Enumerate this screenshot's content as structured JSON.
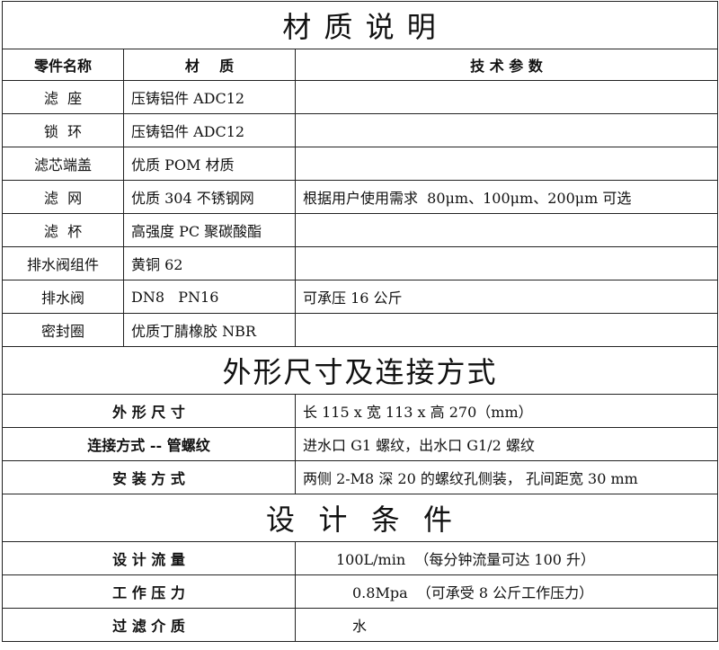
{
  "title": "材 质 说 明",
  "headers": [
    "零件名称",
    "材    质",
    "技 术 参 数"
  ],
  "parts": [
    {
      "name": "滤  座",
      "material": "压铸铝件 ADC12",
      "spec": ""
    },
    {
      "name": "锁  环",
      "material": "压铸铝件 ADC12",
      "spec": ""
    },
    {
      "name": "滤芯端盖",
      "material": "优质 POM 材质",
      "spec": ""
    },
    {
      "name": "滤  网",
      "material": "优质 304 不锈钢网",
      "spec": "根据用户使用需求  80μm、100μm、200μm 可选"
    },
    {
      "name": "滤  杯",
      "material": "高强度 PC 聚碳酸酯",
      "spec": ""
    },
    {
      "name": "排水阀组件",
      "material": "黄铜 62",
      "spec": ""
    },
    {
      "name": "排水阀",
      "material": "DN8   PN16",
      "spec": "可承压 16 公斤"
    },
    {
      "name": "密封圈",
      "material": "优质丁腈橡胶 NBR",
      "spec": ""
    }
  ],
  "section2": {
    "title": "外形尺寸及连接方式",
    "rows": [
      {
        "label": "外 形 尺 寸",
        "value": "长 115 x 宽 113 x 高 270（mm）"
      },
      {
        "label": "连接方式 -- 管螺纹",
        "value": "进水口 G1 螺纹，出水口 G1/2 螺纹"
      },
      {
        "label": "安 装 方 式",
        "value": "两侧 2-M8 深 20 的螺纹孔侧装， 孔间距宽 30 mm"
      }
    ]
  },
  "section3": {
    "title": "设  计  条  件",
    "rows": [
      {
        "label": "设 计 流 量",
        "value": "100L/min  （每分钟流量可达 100 升）"
      },
      {
        "label": "工 作 压 力",
        "value": "0.8Mpa  （可承受 8 公斤工作压力）"
      },
      {
        "label": "过 滤 介 质",
        "value": "水"
      }
    ]
  }
}
